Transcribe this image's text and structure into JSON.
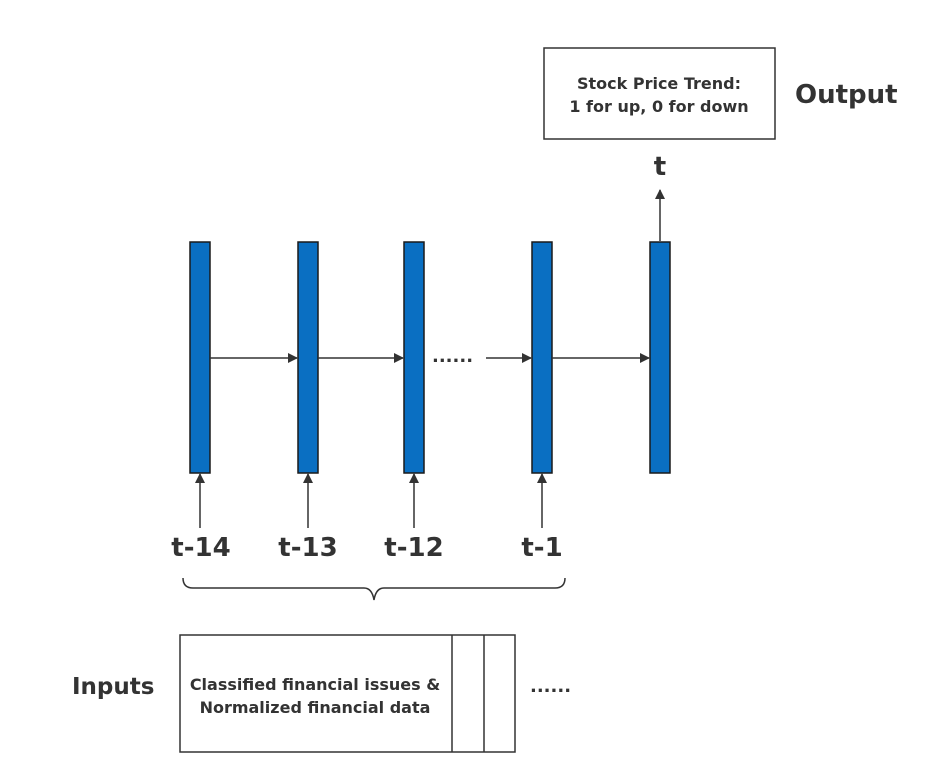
{
  "output": {
    "box_line1": "Stock Price Trend:",
    "box_line2": "1 for up, 0 for down",
    "label": "Output",
    "time_label": "t"
  },
  "timesteps": {
    "labels": [
      "t-14",
      "t-13",
      "t-12",
      "t-1"
    ],
    "ellipsis": "......"
  },
  "inputs": {
    "label": "Inputs",
    "box_line1": "Classified financial issues &",
    "box_line2": "Normalized financial data",
    "ellipsis": "......"
  },
  "colors": {
    "cell_fill": "#0a6fc2",
    "cell_stroke": "#1a1a1a",
    "line": "#333333"
  }
}
